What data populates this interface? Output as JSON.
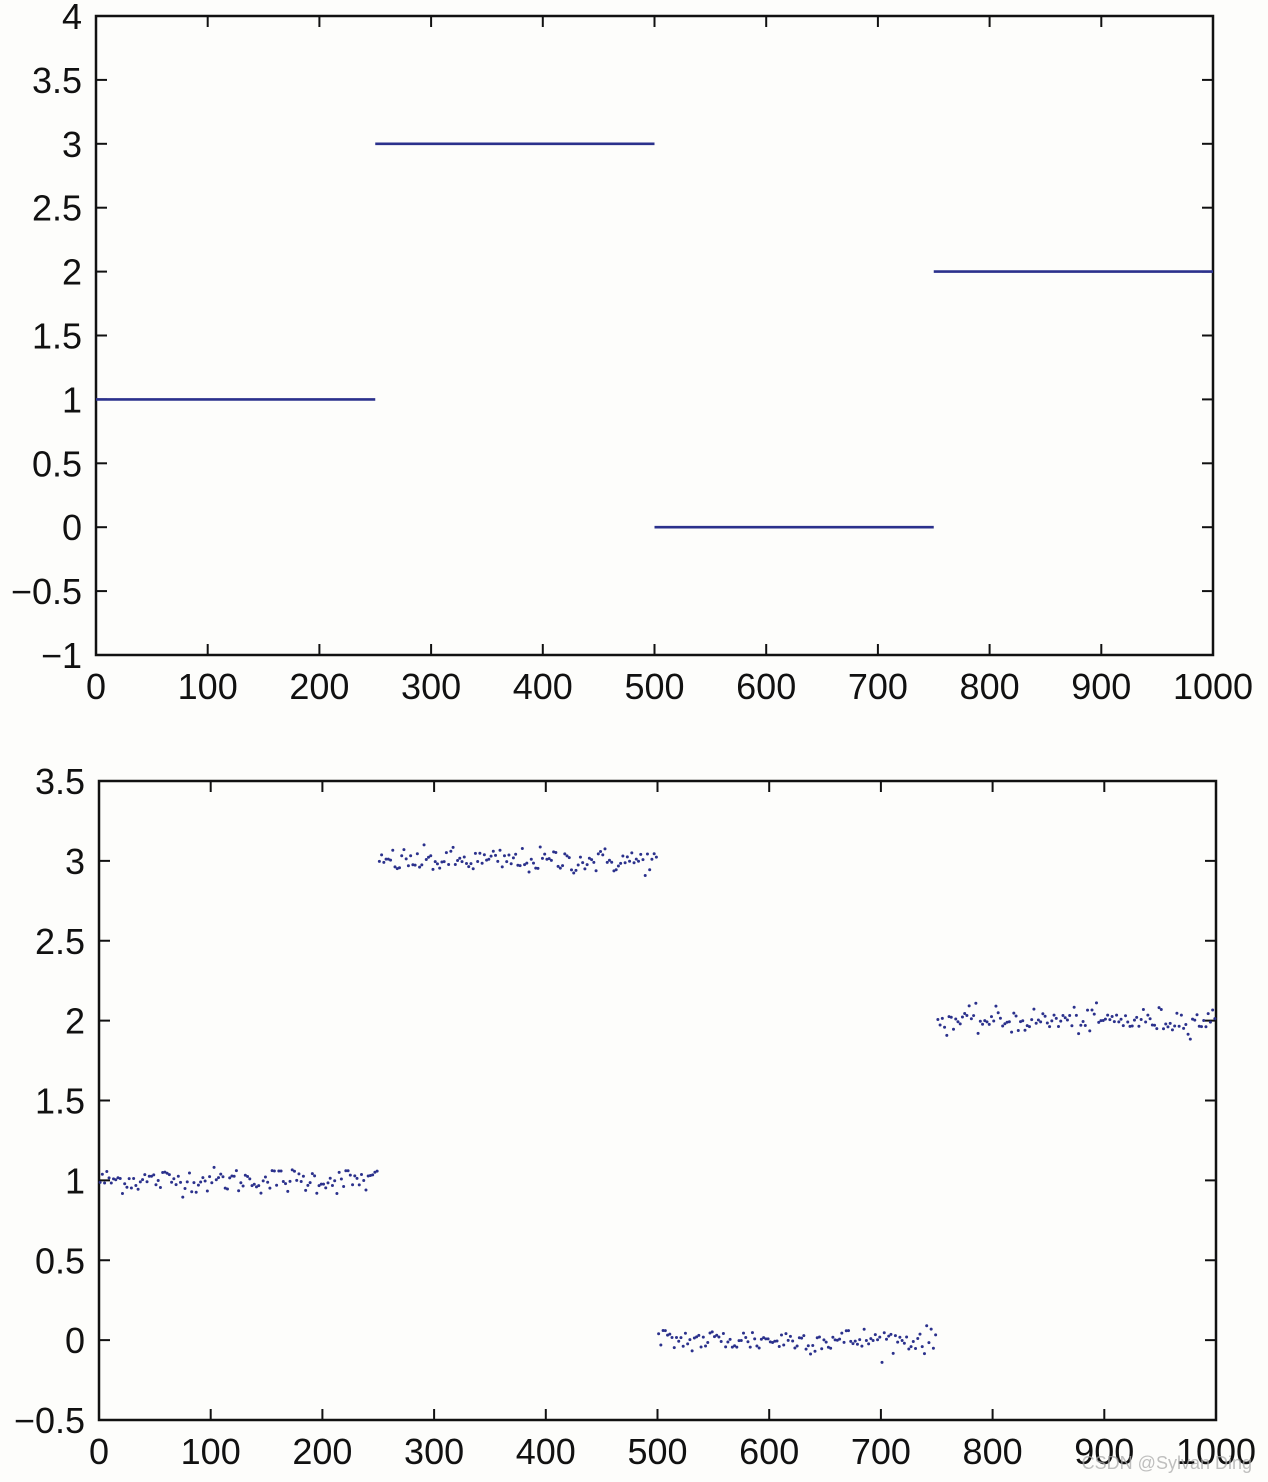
{
  "chart_data": [
    {
      "type": "line",
      "title": "",
      "xlabel": "",
      "ylabel": "",
      "xlim": [
        0,
        1000
      ],
      "ylim": [
        -1,
        4
      ],
      "xticks": [
        0,
        100,
        200,
        300,
        400,
        500,
        600,
        700,
        800,
        900,
        1000
      ],
      "yticks": [
        -1,
        -0.5,
        0,
        0.5,
        1,
        1.5,
        2,
        2.5,
        3,
        3.5,
        4
      ],
      "xtick_labels": [
        "0",
        "100",
        "200",
        "300",
        "400",
        "500",
        "600",
        "700",
        "800",
        "900",
        "1000"
      ],
      "ytick_labels": [
        "−1",
        "−0.5",
        "0",
        "0.5",
        "1",
        "1.5",
        "2",
        "2.5",
        "3",
        "3.5",
        "4"
      ],
      "grid": false,
      "color": "#2b318c",
      "segments": [
        {
          "x": [
            0,
            250
          ],
          "y": 1
        },
        {
          "x": [
            250,
            500
          ],
          "y": 3
        },
        {
          "x": [
            500,
            750
          ],
          "y": 0
        },
        {
          "x": [
            750,
            1000
          ],
          "y": 2
        }
      ]
    },
    {
      "type": "scatter",
      "title": "",
      "xlabel": "",
      "ylabel": "",
      "xlim": [
        0,
        1000
      ],
      "ylim": [
        -0.5,
        3.5
      ],
      "xticks": [
        0,
        100,
        200,
        300,
        400,
        500,
        600,
        700,
        800,
        900,
        1000
      ],
      "yticks": [
        -0.5,
        0,
        0.5,
        1,
        1.5,
        2,
        2.5,
        3,
        3.5
      ],
      "xtick_labels": [
        "0",
        "100",
        "200",
        "300",
        "400",
        "500",
        "600",
        "700",
        "800",
        "900",
        "1000"
      ],
      "ytick_labels": [
        "−0.5",
        "0",
        "0.5",
        "1",
        "1.5",
        "2",
        "2.5",
        "3",
        "3.5"
      ],
      "grid": false,
      "color": "#2b318c",
      "noise_std": 0.04,
      "point_spacing": 2,
      "segments": [
        {
          "x": [
            0,
            250
          ],
          "y": 1
        },
        {
          "x": [
            250,
            500
          ],
          "y": 3
        },
        {
          "x": [
            500,
            750
          ],
          "y": 0
        },
        {
          "x": [
            750,
            1000
          ],
          "y": 2
        }
      ]
    }
  ],
  "watermark": "CSDN @Sylvan Ding"
}
